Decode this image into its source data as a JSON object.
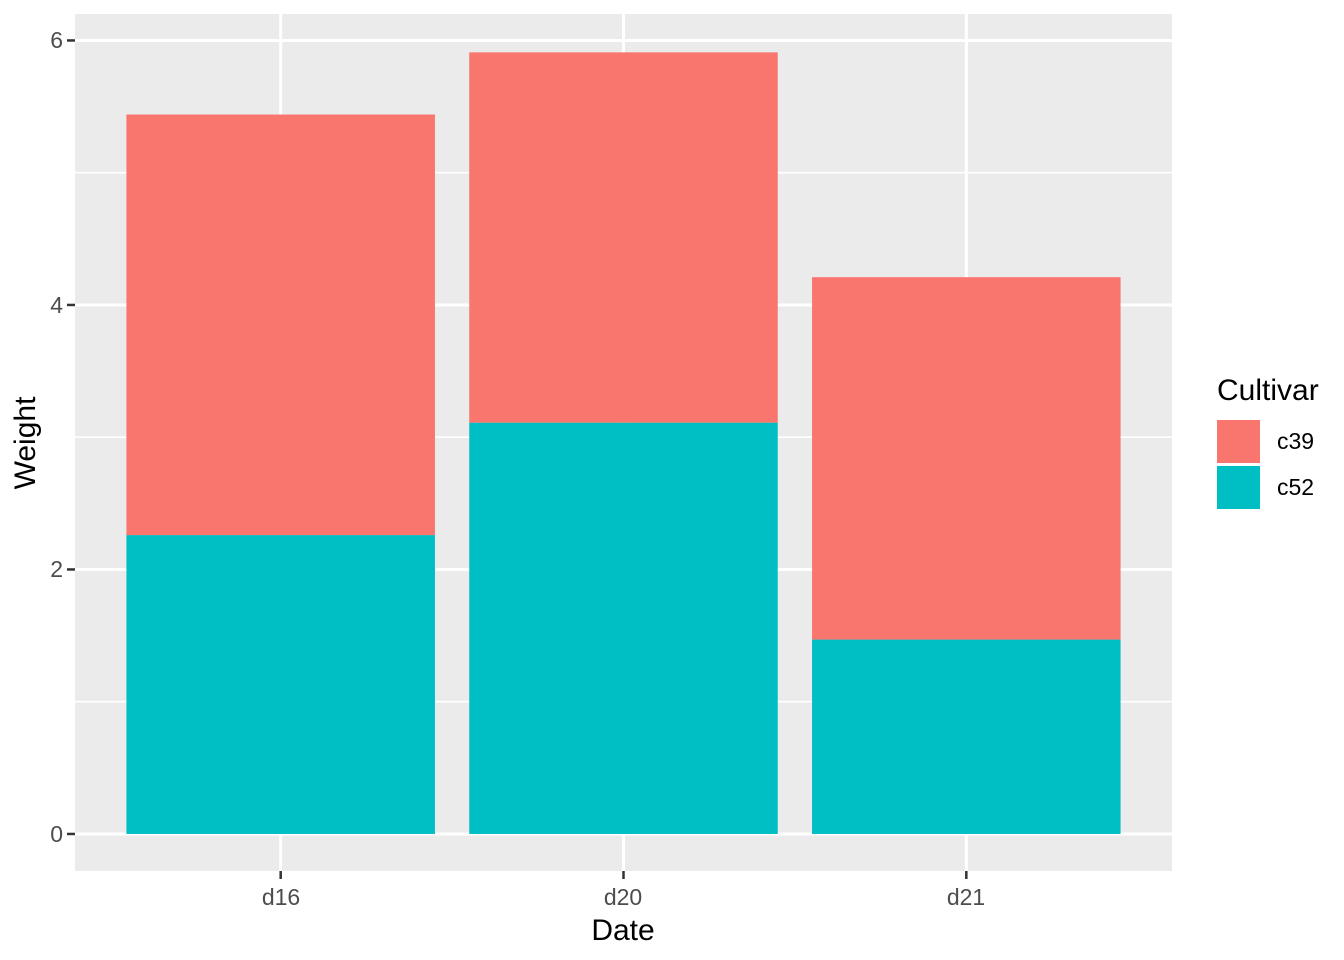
{
  "chart_data": {
    "type": "bar",
    "stacked": true,
    "title": "",
    "xlabel": "Date",
    "ylabel": "Weight",
    "categories": [
      "d16",
      "d20",
      "d21"
    ],
    "series": [
      {
        "name": "c39",
        "color": "#F8766D",
        "values": [
          3.18,
          2.8,
          2.74
        ]
      },
      {
        "name": "c52",
        "color": "#00BFC4",
        "values": [
          2.26,
          3.11,
          1.47
        ]
      }
    ],
    "stack_order_top_to_bottom": [
      "c39",
      "c52"
    ],
    "stack_totals": [
      5.44,
      5.91,
      4.21
    ],
    "yticks": [
      0,
      2,
      4,
      6
    ],
    "yticks_minor": [
      1,
      3,
      5
    ],
    "ylim": [
      -0.28,
      6.2
    ],
    "bar_width_fraction": 0.9,
    "grid": "white major+minor horizontal, white major vertical, on grey panel",
    "legend": {
      "title": "Cultivar",
      "position": "right"
    }
  },
  "styles": {
    "background": "#FFFFFF",
    "panel_bg": "#EBEBEB",
    "grid_color": "#FFFFFF",
    "tick_mark_color": "#333333",
    "tick_label_color": "#4D4D4D",
    "title_color": "#000000"
  }
}
